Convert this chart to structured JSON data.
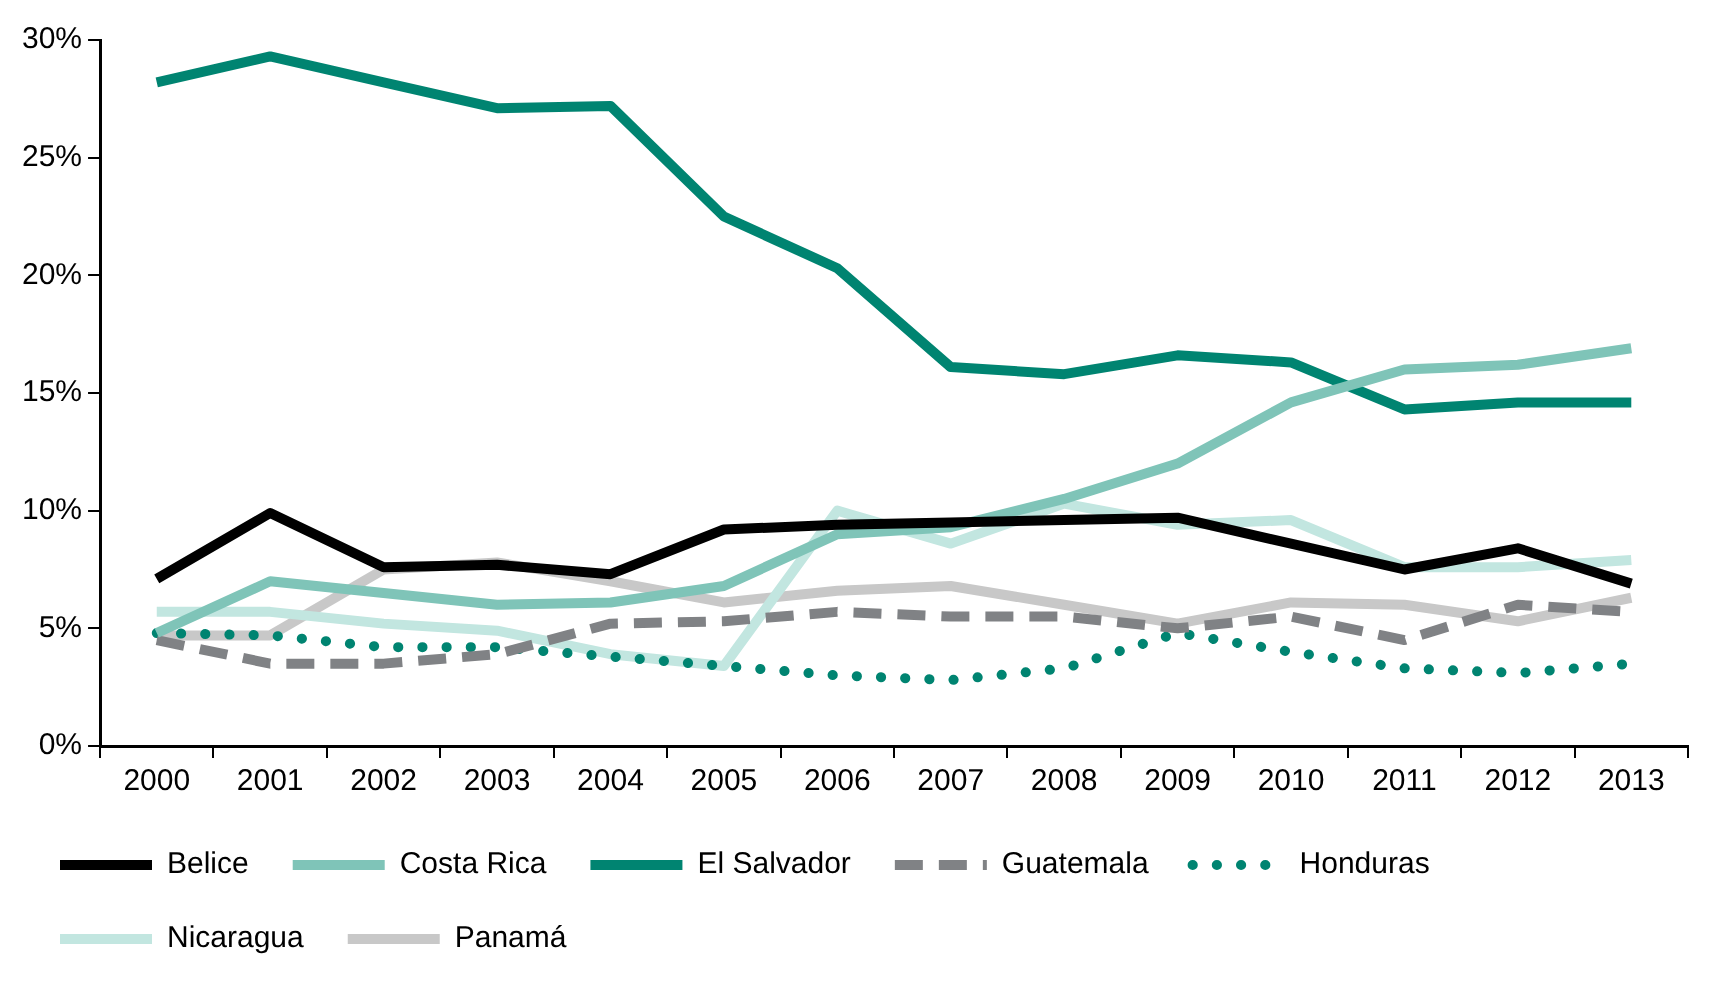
{
  "chart_data": {
    "type": "line",
    "categories": [
      "2000",
      "2001",
      "2002",
      "2003",
      "2004",
      "2005",
      "2006",
      "2007",
      "2008",
      "2009",
      "2010",
      "2011",
      "2012",
      "2013"
    ],
    "series": [
      {
        "name": "Belice",
        "color": "#000000",
        "line_style": "solid",
        "values": [
          7.1,
          9.9,
          7.6,
          7.7,
          7.3,
          9.2,
          9.4,
          9.5,
          9.6,
          9.7,
          8.6,
          7.5,
          8.4,
          6.9
        ]
      },
      {
        "name": "Costa Rica",
        "color": "#7fc4b8",
        "line_style": "solid",
        "values": [
          4.8,
          7.0,
          6.5,
          6.0,
          6.1,
          6.8,
          9.0,
          9.3,
          10.5,
          12.0,
          14.6,
          16.0,
          16.2,
          16.9
        ]
      },
      {
        "name": "El Salvador",
        "color": "#008471",
        "line_style": "solid",
        "values": [
          28.2,
          29.3,
          28.2,
          27.1,
          27.2,
          22.5,
          20.3,
          16.1,
          15.8,
          16.6,
          16.3,
          14.3,
          14.6,
          14.6
        ]
      },
      {
        "name": "Guatemala",
        "color": "#808285",
        "line_style": "dashed",
        "values": [
          4.5,
          3.5,
          3.5,
          3.9,
          5.2,
          5.3,
          5.7,
          5.5,
          5.5,
          5.0,
          5.5,
          4.5,
          6.0,
          5.7
        ]
      },
      {
        "name": "Honduras",
        "color": "#008471",
        "line_style": "dotted",
        "values": [
          4.8,
          4.7,
          4.2,
          4.2,
          3.8,
          3.4,
          3.0,
          2.8,
          3.3,
          4.8,
          4.0,
          3.3,
          3.1,
          3.5
        ]
      },
      {
        "name": "Nicaragua",
        "color": "#c2e6e0",
        "line_style": "solid",
        "values": [
          5.7,
          5.7,
          5.2,
          4.9,
          3.9,
          3.4,
          10.0,
          8.6,
          10.3,
          9.4,
          9.6,
          7.6,
          7.6,
          7.9
        ]
      },
      {
        "name": "Panamá",
        "color": "#c8c8c8",
        "line_style": "solid",
        "values": [
          4.7,
          4.7,
          7.5,
          7.8,
          7.0,
          6.1,
          6.6,
          6.8,
          6.0,
          5.2,
          6.1,
          6.0,
          5.3,
          6.3
        ]
      }
    ],
    "ylim": [
      0,
      30
    ],
    "yticks": [
      {
        "value": 0,
        "label": "0%"
      },
      {
        "value": 5,
        "label": "5%"
      },
      {
        "value": 10,
        "label": "10%"
      },
      {
        "value": 15,
        "label": "15%"
      },
      {
        "value": 20,
        "label": "20%"
      },
      {
        "value": 25,
        "label": "25%"
      },
      {
        "value": 30,
        "label": "30%"
      }
    ],
    "grid": false,
    "legend": "bottom",
    "marker": "none"
  }
}
